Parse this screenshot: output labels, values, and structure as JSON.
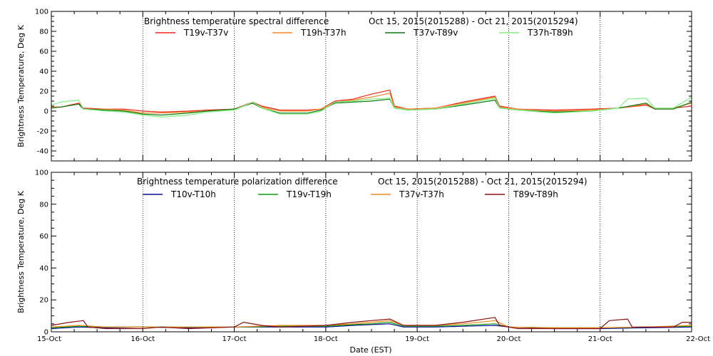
{
  "chart_data": [
    {
      "type": "line",
      "title": "Brightness temperature spectral difference",
      "date_range": "Oct 15, 2015(2015288) - Oct 21, 2015(2015294)",
      "ylabel": "Brightness Temperature, Deg K",
      "xlabel": "",
      "ylim": [
        -50,
        100
      ],
      "yticks": [
        -40,
        -20,
        0,
        20,
        40,
        60,
        80,
        100
      ],
      "xlim": [
        0,
        7
      ],
      "xticks": [
        0,
        1,
        2,
        3,
        4,
        5,
        6,
        7
      ],
      "xtick_labels": [
        "",
        "",
        "",
        "",
        "",
        "",
        "",
        ""
      ],
      "vgrid": true,
      "legend": "top",
      "series": [
        {
          "name": "T19v-T37v",
          "color": "#e8261a",
          "points": [
            [
              0,
              4
            ],
            [
              0.1,
              4
            ],
            [
              0.3,
              8
            ],
            [
              0.35,
              3
            ],
            [
              0.6,
              2
            ],
            [
              0.8,
              2
            ],
            [
              1,
              0
            ],
            [
              1.2,
              -1
            ],
            [
              1.5,
              0
            ],
            [
              1.7,
              1
            ],
            [
              2,
              2
            ],
            [
              2.2,
              9
            ],
            [
              2.3,
              5
            ],
            [
              2.5,
              1
            ],
            [
              2.8,
              1
            ],
            [
              2.95,
              2
            ],
            [
              3.1,
              10
            ],
            [
              3.3,
              12
            ],
            [
              3.5,
              17
            ],
            [
              3.7,
              21
            ],
            [
              3.75,
              5
            ],
            [
              3.9,
              2
            ],
            [
              4.2,
              3
            ],
            [
              4.5,
              9
            ],
            [
              4.85,
              15
            ],
            [
              4.9,
              5
            ],
            [
              5.1,
              2
            ],
            [
              5.5,
              1
            ],
            [
              5.9,
              2
            ],
            [
              6.2,
              3
            ],
            [
              6.5,
              6
            ],
            [
              6.6,
              2
            ],
            [
              6.8,
              3
            ],
            [
              7,
              5
            ]
          ]
        },
        {
          "name": "T19h-T37h",
          "color": "#f0862a",
          "points": [
            [
              0,
              4
            ],
            [
              0.1,
              4
            ],
            [
              0.3,
              7
            ],
            [
              0.35,
              2
            ],
            [
              0.6,
              2
            ],
            [
              0.8,
              1
            ],
            [
              1,
              -2
            ],
            [
              1.2,
              -2
            ],
            [
              1.5,
              -1
            ],
            [
              1.7,
              0
            ],
            [
              2,
              2
            ],
            [
              2.2,
              8
            ],
            [
              2.3,
              4
            ],
            [
              2.5,
              0
            ],
            [
              2.8,
              0
            ],
            [
              2.95,
              2
            ],
            [
              3.1,
              9
            ],
            [
              3.3,
              11
            ],
            [
              3.5,
              14
            ],
            [
              3.7,
              18
            ],
            [
              3.75,
              4
            ],
            [
              3.9,
              2
            ],
            [
              4.2,
              3
            ],
            [
              4.5,
              8
            ],
            [
              4.85,
              14
            ],
            [
              4.9,
              4
            ],
            [
              5.1,
              2
            ],
            [
              5.5,
              0
            ],
            [
              5.9,
              1
            ],
            [
              6.2,
              3
            ],
            [
              6.5,
              7
            ],
            [
              6.6,
              2
            ],
            [
              6.8,
              3
            ],
            [
              7,
              8
            ]
          ]
        },
        {
          "name": "T37v-T89v",
          "color": "#0a7a10",
          "points": [
            [
              0,
              3
            ],
            [
              0.1,
              4
            ],
            [
              0.3,
              7
            ],
            [
              0.35,
              2
            ],
            [
              0.6,
              1
            ],
            [
              0.8,
              0
            ],
            [
              1,
              -3
            ],
            [
              1.2,
              -4
            ],
            [
              1.5,
              -2
            ],
            [
              1.7,
              0
            ],
            [
              2,
              2
            ],
            [
              2.2,
              8
            ],
            [
              2.3,
              3
            ],
            [
              2.5,
              -2
            ],
            [
              2.8,
              -2
            ],
            [
              2.95,
              1
            ],
            [
              3.1,
              8
            ],
            [
              3.3,
              9
            ],
            [
              3.5,
              10
            ],
            [
              3.7,
              12
            ],
            [
              3.75,
              3
            ],
            [
              3.9,
              1
            ],
            [
              4.2,
              2
            ],
            [
              4.5,
              6
            ],
            [
              4.85,
              11
            ],
            [
              4.9,
              3
            ],
            [
              5.1,
              1
            ],
            [
              5.5,
              -1
            ],
            [
              5.9,
              0
            ],
            [
              6.2,
              3
            ],
            [
              6.5,
              8
            ],
            [
              6.6,
              2
            ],
            [
              6.8,
              2
            ],
            [
              7,
              9
            ]
          ]
        },
        {
          "name": "T37h-T89h",
          "color": "#7ef07e",
          "points": [
            [
              0,
              6
            ],
            [
              0.1,
              9
            ],
            [
              0.3,
              11
            ],
            [
              0.35,
              2
            ],
            [
              0.6,
              0
            ],
            [
              0.8,
              -1
            ],
            [
              1,
              -4
            ],
            [
              1.2,
              -6
            ],
            [
              1.5,
              -4
            ],
            [
              1.7,
              -1
            ],
            [
              2,
              1
            ],
            [
              2.2,
              9
            ],
            [
              2.3,
              3
            ],
            [
              2.5,
              -3
            ],
            [
              2.8,
              -3
            ],
            [
              2.95,
              0
            ],
            [
              3.1,
              9
            ],
            [
              3.3,
              10
            ],
            [
              3.5,
              12
            ],
            [
              3.7,
              13
            ],
            [
              3.75,
              3
            ],
            [
              3.9,
              1
            ],
            [
              4.2,
              2
            ],
            [
              4.5,
              7
            ],
            [
              4.85,
              13
            ],
            [
              4.9,
              3
            ],
            [
              5.1,
              1
            ],
            [
              5.5,
              -2
            ],
            [
              5.9,
              0
            ],
            [
              6.2,
              3
            ],
            [
              6.3,
              12
            ],
            [
              6.5,
              13
            ],
            [
              6.6,
              3
            ],
            [
              6.8,
              3
            ],
            [
              7,
              14
            ]
          ]
        }
      ]
    },
    {
      "type": "line",
      "title": "Brightness temperature polarization difference",
      "date_range": "Oct 15, 2015(2015288) - Oct 21, 2015(2015294)",
      "ylabel": "Brightness Temperature, Deg K",
      "xlabel": "Date (EST)",
      "ylim": [
        0,
        100
      ],
      "yticks": [
        0,
        20,
        40,
        60,
        80,
        100
      ],
      "xlim": [
        0,
        7
      ],
      "xticks": [
        0,
        1,
        2,
        3,
        4,
        5,
        6,
        7
      ],
      "xtick_labels": [
        "15-Oct",
        "16-Oct",
        "17-Oct",
        "18-Oct",
        "19-Oct",
        "20-Oct",
        "21-Oct",
        "22-Oct"
      ],
      "vgrid": true,
      "legend": "top",
      "series": [
        {
          "name": "T10v-T10h",
          "color": "#0a0a9a",
          "points": [
            [
              0,
              2
            ],
            [
              0.3,
              3
            ],
            [
              0.6,
              2.5
            ],
            [
              1,
              3
            ],
            [
              1.5,
              2.5
            ],
            [
              2,
              3
            ],
            [
              2.5,
              3
            ],
            [
              3,
              3
            ],
            [
              3.3,
              4
            ],
            [
              3.5,
              4.5
            ],
            [
              3.7,
              5
            ],
            [
              3.85,
              3
            ],
            [
              4.2,
              3
            ],
            [
              4.5,
              3.5
            ],
            [
              4.85,
              4
            ],
            [
              5,
              3
            ],
            [
              5.5,
              2
            ],
            [
              6,
              2
            ],
            [
              6.5,
              2.5
            ],
            [
              7,
              3
            ]
          ]
        },
        {
          "name": "T19v-T19h",
          "color": "#109a10",
          "points": [
            [
              0,
              2.5
            ],
            [
              0.3,
              3.5
            ],
            [
              0.6,
              3
            ],
            [
              1,
              3
            ],
            [
              1.5,
              3
            ],
            [
              2,
              3
            ],
            [
              2.5,
              3.5
            ],
            [
              3,
              3.5
            ],
            [
              3.3,
              4.5
            ],
            [
              3.5,
              5
            ],
            [
              3.7,
              6
            ],
            [
              3.85,
              3.5
            ],
            [
              4.2,
              3.5
            ],
            [
              4.5,
              4
            ],
            [
              4.85,
              5
            ],
            [
              5,
              3
            ],
            [
              5.5,
              2.5
            ],
            [
              6,
              2.5
            ],
            [
              6.5,
              3
            ],
            [
              7,
              3.5
            ]
          ]
        },
        {
          "name": "T37v-T37h",
          "color": "#f08a1a",
          "points": [
            [
              0,
              3
            ],
            [
              0.3,
              4
            ],
            [
              0.6,
              3
            ],
            [
              1,
              3
            ],
            [
              1.5,
              3
            ],
            [
              2,
              3
            ],
            [
              2.5,
              4
            ],
            [
              3,
              4
            ],
            [
              3.3,
              5
            ],
            [
              3.5,
              6
            ],
            [
              3.7,
              7
            ],
            [
              3.85,
              4
            ],
            [
              4.2,
              4
            ],
            [
              4.5,
              5
            ],
            [
              4.85,
              7
            ],
            [
              5,
              3
            ],
            [
              5.5,
              2.5
            ],
            [
              6,
              2.5
            ],
            [
              6.5,
              3
            ],
            [
              7,
              4
            ]
          ]
        },
        {
          "name": "T89v-T89h",
          "color": "#8a1010",
          "points": [
            [
              0,
              4
            ],
            [
              0.2,
              6
            ],
            [
              0.35,
              7
            ],
            [
              0.4,
              3
            ],
            [
              0.6,
              2
            ],
            [
              1,
              2
            ],
            [
              1.2,
              3
            ],
            [
              1.5,
              2
            ],
            [
              2,
              3
            ],
            [
              2.1,
              6
            ],
            [
              2.3,
              4
            ],
            [
              2.5,
              3
            ],
            [
              3,
              4
            ],
            [
              3.3,
              6
            ],
            [
              3.5,
              7
            ],
            [
              3.7,
              8
            ],
            [
              3.85,
              4
            ],
            [
              4.2,
              4
            ],
            [
              4.5,
              6
            ],
            [
              4.85,
              9
            ],
            [
              4.9,
              4
            ],
            [
              5.1,
              2
            ],
            [
              5.5,
              2
            ],
            [
              6,
              2
            ],
            [
              6.1,
              7
            ],
            [
              6.3,
              8
            ],
            [
              6.35,
              3
            ],
            [
              6.8,
              3
            ],
            [
              6.9,
              6
            ],
            [
              7,
              6
            ]
          ]
        }
      ]
    }
  ]
}
